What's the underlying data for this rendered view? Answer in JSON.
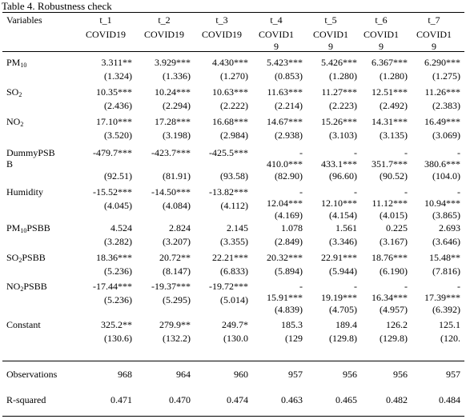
{
  "title": "Table 4. Robustness check",
  "header": {
    "variables_label": "Variables",
    "columns": [
      {
        "name": "t_1",
        "sub1": "COVID19",
        "sub2": ""
      },
      {
        "name": "t_2",
        "sub1": "COVID19",
        "sub2": ""
      },
      {
        "name": "t_3",
        "sub1": "COVID19",
        "sub2": ""
      },
      {
        "name": "t_4",
        "sub1": "COVID1",
        "sub2": "9"
      },
      {
        "name": "t_5",
        "sub1": "COVID1",
        "sub2": "9"
      },
      {
        "name": "t_6",
        "sub1": "COVID1",
        "sub2": "9"
      },
      {
        "name": "t_7",
        "sub1": "COVID1",
        "sub2": "9"
      }
    ]
  },
  "rows": [
    {
      "label": "PM",
      "label_sub": "10",
      "label_suffix": "",
      "label2": "",
      "coef": [
        "3.311**",
        "3.929***",
        "4.430***",
        "5.423***",
        "5.426***",
        "6.367***",
        "6.290***"
      ],
      "se": [
        "(1.324)",
        "(1.336)",
        "(1.270)",
        "(0.853)",
        "(1.280)",
        "(1.280)",
        "(1.275)"
      ]
    },
    {
      "label": "SO",
      "label_sub": "2",
      "label_suffix": "",
      "label2": "",
      "coef": [
        "10.35***",
        "10.24***",
        "10.63***",
        "11.63***",
        "11.27***",
        "12.51***",
        "11.26***"
      ],
      "se": [
        "(2.436)",
        "(2.294)",
        "(2.222)",
        "(2.214)",
        "(2.223)",
        "(2.492)",
        "(2.383)"
      ]
    },
    {
      "label": "NO",
      "label_sub": "2",
      "label_suffix": "",
      "label2": "",
      "coef": [
        "17.10***",
        "17.28***",
        "16.68***",
        "14.67***",
        "15.26***",
        "14.31***",
        "16.49***"
      ],
      "se": [
        "(3.520)",
        "(3.198)",
        "(2.984)",
        "(2.938)",
        "(3.103)",
        "(3.135)",
        "(3.069)"
      ]
    },
    {
      "label": "DummyPSB",
      "label_sub": "",
      "label_suffix": "",
      "label2": "B",
      "dash": [
        "",
        "",
        "",
        "-",
        "-",
        "-",
        "-"
      ],
      "coef": [
        "-479.7***",
        "-423.7***",
        "-425.5***",
        "410.0***",
        "433.1***",
        "351.7***",
        "380.6***"
      ],
      "se": [
        "(92.51)",
        "(81.91)",
        "(93.58)",
        "(82.90)",
        "(96.60)",
        "(90.52)",
        "(104.0)"
      ]
    },
    {
      "label": "Humidity",
      "label_sub": "",
      "label_suffix": "",
      "label2": "",
      "dash": [
        "",
        "",
        "",
        "-",
        "-",
        "-",
        "-"
      ],
      "coef": [
        "-15.52***",
        "-14.50***",
        "-13.82***",
        "12.04***",
        "12.10***",
        "11.12***",
        "10.94***"
      ],
      "se": [
        "(4.045)",
        "(4.084)",
        "(4.112)",
        "(4.169)",
        "(4.154)",
        "(4.015)",
        "(3.865)"
      ]
    },
    {
      "label": "PM",
      "label_sub": "10",
      "label_suffix": "PSBB",
      "label2": "",
      "coef": [
        "4.524",
        "2.824",
        "2.145",
        "1.078",
        "1.561",
        "0.225",
        "2.693"
      ],
      "se": [
        "(3.282)",
        "(3.207)",
        "(3.355)",
        "(2.849)",
        "(3.346)",
        "(3.167)",
        "(3.646)"
      ]
    },
    {
      "label": "SO",
      "label_sub": "2",
      "label_suffix": "PSBB",
      "label2": "",
      "coef": [
        "18.36***",
        "20.72**",
        "22.21***",
        "20.32***",
        "22.91***",
        "18.76***",
        "15.48**"
      ],
      "se": [
        "(5.236)",
        "(8.147)",
        "(6.833)",
        "(5.894)",
        "(5.944)",
        "(6.190)",
        "(7.816)"
      ]
    },
    {
      "label": "NO",
      "label_sub": "2",
      "label_suffix": "PSBB",
      "label2": "",
      "dash": [
        "",
        "",
        "",
        "-",
        "-",
        "-",
        "-"
      ],
      "coef": [
        "-17.44***",
        "-19.37***",
        "-19.72***",
        "15.91***",
        "19.19***",
        "16.34***",
        "17.39***"
      ],
      "se": [
        "(5.236)",
        "(5.295)",
        "(5.014)",
        "(4.839)",
        "(4.705)",
        "(4.957)",
        "(6.392)"
      ]
    },
    {
      "label": "Constant",
      "label_sub": "",
      "label_suffix": "",
      "label2": "",
      "coef": [
        "325.2**",
        "279.9**",
        "249.7*",
        "185.3",
        "189.4",
        "126.2",
        "125.1"
      ],
      "se": [
        "(130.6)",
        "(132.2)",
        "(130.0",
        "(129",
        "(129.8)",
        "(129.8)",
        "(120."
      ]
    }
  ],
  "stats": [
    {
      "label": "Observations",
      "values": [
        "968",
        "964",
        "960",
        "957",
        "956",
        "956",
        "957"
      ]
    },
    {
      "label": "R-squared",
      "values": [
        "0.471",
        "0.470",
        "0.474",
        "0.463",
        "0.465",
        "0.482",
        "0.484"
      ]
    }
  ]
}
